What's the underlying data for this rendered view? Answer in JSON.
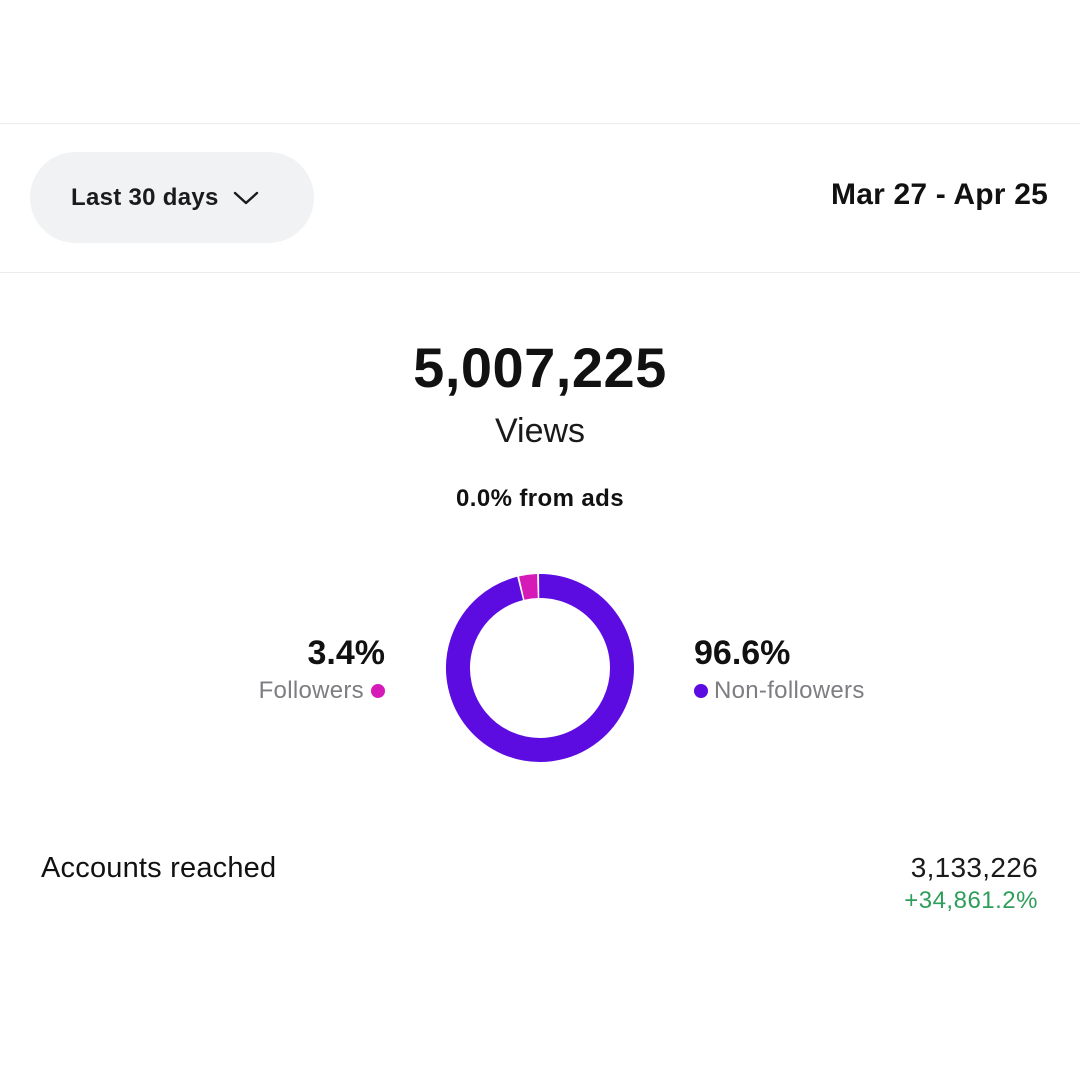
{
  "filter": {
    "range_label": "Last 30 days",
    "date_range": "Mar 27 - Apr 25"
  },
  "summary": {
    "views_value": "5,007,225",
    "views_label": "Views",
    "ads_text": "0.0% from ads"
  },
  "audience": {
    "followers_pct": "3.4%",
    "followers_label": "Followers",
    "non_followers_pct": "96.6%",
    "non_followers_label": "Non-followers"
  },
  "chart_data": {
    "type": "pie",
    "categories": [
      "Followers",
      "Non-followers"
    ],
    "values": [
      3.4,
      96.6
    ],
    "colors": [
      "#d51ab8",
      "#5c0be0"
    ]
  },
  "metrics": {
    "accounts_reached_label": "Accounts reached",
    "accounts_reached_value": "3,133,226",
    "accounts_reached_change": "+34,861.2%"
  },
  "colors": {
    "followers": "#d51ab8",
    "non_followers": "#5c0be0",
    "positive_change": "#2e9e5b",
    "button_bg": "#f1f2f4"
  },
  "icons": {
    "range_dropdown": "chevron-down-icon"
  }
}
